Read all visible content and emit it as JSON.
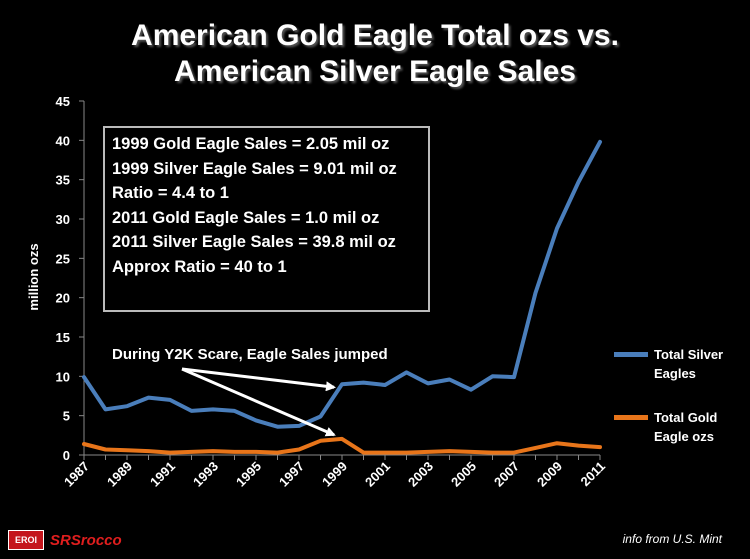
{
  "title": {
    "line1": "American Gold Eagle Total ozs vs.",
    "line2": "American Silver Eagle Sales"
  },
  "info_box": [
    "1999 Gold Eagle Sales = 2.05 mil oz",
    "1999 Silver Eagle Sales = 9.01 mil oz",
    "Ratio = 4.4 to 1",
    "2011 Gold Eagle Sales = 1.0 mil oz",
    "2011 Silver Eagle Sales = 39.8 mil oz",
    "Approx Ratio = 40 to 1"
  ],
  "annotation": "During Y2K Scare, Eagle Sales jumped",
  "logo": {
    "badge": "EROI",
    "name": "SRSrocco"
  },
  "source": "info from U.S. Mint",
  "chart_data": {
    "type": "line",
    "ylabel": "million ozs",
    "xlabel": "",
    "ylim": [
      0,
      45
    ],
    "yticks": [
      0,
      5,
      10,
      15,
      20,
      25,
      30,
      35,
      40,
      45
    ],
    "x": [
      1987,
      1988,
      1989,
      1990,
      1991,
      1992,
      1993,
      1994,
      1995,
      1996,
      1997,
      1998,
      1999,
      2000,
      2001,
      2002,
      2003,
      2004,
      2005,
      2006,
      2007,
      2008,
      2009,
      2010,
      2011
    ],
    "xtick_labels": [
      "1987",
      "1989",
      "1991",
      "1993",
      "1995",
      "1997",
      "1999",
      "2001",
      "2003",
      "2005",
      "2007",
      "2009",
      "2011"
    ],
    "grid": false,
    "legend_position": "right",
    "series": [
      {
        "name": "Total  Silver Eagles",
        "color": "#4a7ebb",
        "values": [
          9.9,
          5.8,
          6.2,
          7.3,
          7.0,
          5.6,
          5.8,
          5.6,
          4.4,
          3.6,
          3.7,
          4.9,
          9.0,
          9.2,
          8.9,
          10.5,
          9.1,
          9.6,
          8.3,
          10.0,
          9.9,
          20.6,
          28.8,
          34.7,
          39.8
        ]
      },
      {
        "name": "Total Gold Eagle ozs",
        "color": "#e8751a",
        "values": [
          1.4,
          0.7,
          0.6,
          0.5,
          0.3,
          0.4,
          0.5,
          0.4,
          0.4,
          0.3,
          0.7,
          1.8,
          2.05,
          0.3,
          0.3,
          0.3,
          0.4,
          0.5,
          0.4,
          0.3,
          0.3,
          0.9,
          1.5,
          1.2,
          1.0
        ]
      }
    ]
  }
}
